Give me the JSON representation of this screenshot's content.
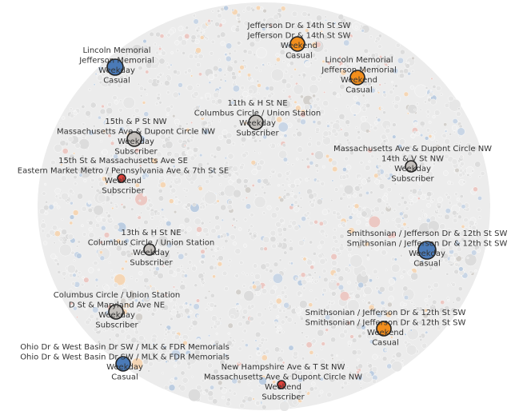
{
  "chart_data": {
    "type": "packed-bubble",
    "title": "",
    "colors": {
      "Weekday|Casual": "#4a7ab7",
      "Weekend|Casual": "#f28e1c",
      "Weekday|Subscriber": "#c4c0bc",
      "Weekend|Subscriber": "#e0413a",
      "background_bubbles": [
        "#e6e6e6",
        "#dcdcdc",
        "#eeeeee",
        "#c9d6e6",
        "#f5d6b5",
        "#ecc8c3",
        "#d3d0cc",
        "#bccde1"
      ]
    },
    "highlighted": [
      {
        "id": "b1",
        "route": [
          "Jefferson Dr & 14th St SW",
          "Jefferson Dr & 14th St SW"
        ],
        "day": "Weekend",
        "member": "Casual",
        "size": 3
      },
      {
        "id": "b2",
        "route": [
          "Lincoln Memorial",
          "Jefferson Memorial"
        ],
        "day": "Weekday",
        "member": "Casual",
        "size": 4
      },
      {
        "id": "b3",
        "route": [
          "Lincoln Memorial",
          "Jefferson Memorial"
        ],
        "day": "Weekend",
        "member": "Casual",
        "size": 3
      },
      {
        "id": "b4",
        "route": [
          "11th & H St NE",
          "Columbus Circle / Union Station"
        ],
        "day": "Weekday",
        "member": "Subscriber",
        "size": 3
      },
      {
        "id": "b5",
        "route": [
          "15th & P St NW",
          "Massachusetts Ave & Dupont Circle NW"
        ],
        "day": "Weekday",
        "member": "Subscriber",
        "size": 3
      },
      {
        "id": "b6",
        "route": [
          "15th St & Massachusetts Ave SE",
          "Eastern Market Metro / Pennsylvania Ave & 7th St SE"
        ],
        "day": "Weekend",
        "member": "Subscriber",
        "size": 1
      },
      {
        "id": "b7",
        "route": [
          "Massachusetts Ave & Dupont Circle NW",
          "14th & V St NW"
        ],
        "day": "Weekday",
        "member": "Subscriber",
        "size": 2
      },
      {
        "id": "b8",
        "route": [
          "13th & H St NE",
          "Columbus Circle / Union Station"
        ],
        "day": "Weekday",
        "member": "Subscriber",
        "size": 2
      },
      {
        "id": "b9",
        "route": [
          "Smithsonian / Jefferson Dr & 12th St SW",
          "Smithsonian / Jefferson Dr & 12th St SW"
        ],
        "day": "Weekday",
        "member": "Casual",
        "size": 5
      },
      {
        "id": "b10",
        "route": [
          "Columbus Circle / Union Station",
          "D St & Maryland Ave NE"
        ],
        "day": "Weekday",
        "member": "Subscriber",
        "size": 3
      },
      {
        "id": "b11",
        "route": [
          "Smithsonian / Jefferson Dr & 12th St SW",
          "Smithsonian / Jefferson Dr & 12th St SW"
        ],
        "day": "Weekend",
        "member": "Casual",
        "size": 3
      },
      {
        "id": "b12",
        "route": [
          "Ohio Dr & West Basin Dr SW / MLK & FDR Memorials",
          "Ohio Dr & West Basin Dr SW / MLK & FDR Memorials"
        ],
        "day": "Weekday",
        "member": "Casual",
        "size": 3
      },
      {
        "id": "b13",
        "route": [
          "New Hampshire Ave & T St NW",
          "Massachusetts Ave & Dupont Circle NW"
        ],
        "day": "Weekend",
        "member": "Subscriber",
        "size": 1
      }
    ]
  }
}
